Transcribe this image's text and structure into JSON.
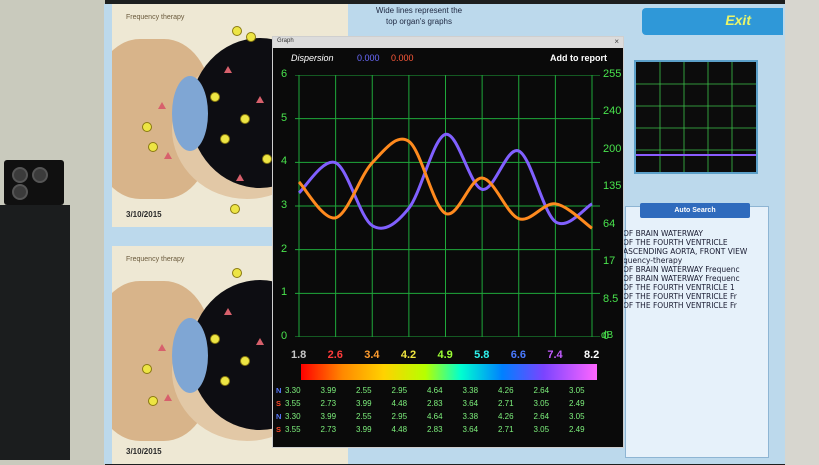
{
  "left_column": {
    "thumbs": [
      {
        "title": "Frequency therapy",
        "date": "3/10/2015"
      },
      {
        "title": "Frequency therapy",
        "date": "3/10/2015"
      }
    ]
  },
  "header": {
    "info_text_line1": "Wide lines represent the",
    "info_text_line2": "top organ's graphs",
    "exit_label": "Exit"
  },
  "graph_window": {
    "title": "Graph",
    "close_glyph": "×",
    "dispersion_label": "Dispersion",
    "dispersion_n": "0.000",
    "dispersion_s": "0.000",
    "add_report_label": "Add to report",
    "y_left_ticks": [
      "6",
      "5",
      "4",
      "3",
      "2",
      "1",
      "0"
    ],
    "y_right_ticks": [
      "255",
      "240",
      "200",
      "135",
      "64",
      "17",
      "8.5",
      "0"
    ],
    "unit_label": "dB",
    "freq_labels": [
      {
        "text": "1.8",
        "color": "#c8c8c8"
      },
      {
        "text": "2.6",
        "color": "#ff3b3b"
      },
      {
        "text": "3.4",
        "color": "#ff9d2f"
      },
      {
        "text": "4.2",
        "color": "#f0e640"
      },
      {
        "text": "4.9",
        "color": "#9cff35"
      },
      {
        "text": "5.8",
        "color": "#2ff2ee"
      },
      {
        "text": "6.6",
        "color": "#4a7aff"
      },
      {
        "text": "7.4",
        "color": "#c25cff"
      },
      {
        "text": "8.2",
        "color": "#ffffff"
      }
    ],
    "table_rows": [
      {
        "label": "N",
        "label_color": "#5a7aff",
        "values": [
          "3.30",
          "3.99",
          "2.55",
          "2.95",
          "4.64",
          "3.38",
          "4.26",
          "2.64",
          "3.05"
        ]
      },
      {
        "label": "S",
        "label_color": "#ff4a2a",
        "values": [
          "3.55",
          "2.73",
          "3.99",
          "4.48",
          "2.83",
          "3.64",
          "2.71",
          "3.05",
          "2.49"
        ]
      },
      {
        "label": "N",
        "label_color": "#5a7aff",
        "values": [
          "3.30",
          "3.99",
          "2.55",
          "2.95",
          "4.64",
          "3.38",
          "4.26",
          "2.64",
          "3.05"
        ]
      },
      {
        "label": "S",
        "label_color": "#ff4a2a",
        "values": [
          "3.55",
          "2.73",
          "3.99",
          "4.48",
          "2.83",
          "3.64",
          "2.71",
          "3.05",
          "2.49"
        ]
      }
    ]
  },
  "chart_data": {
    "type": "line",
    "x": [
      1.8,
      2.6,
      3.4,
      4.2,
      4.9,
      5.8,
      6.6,
      7.4,
      8.2
    ],
    "ylim": [
      0,
      6
    ],
    "grid": true,
    "series": [
      {
        "name": "N",
        "color": "#8060ff",
        "values": [
          3.3,
          3.99,
          2.55,
          2.95,
          4.64,
          3.38,
          4.26,
          2.64,
          3.05
        ]
      },
      {
        "name": "S",
        "color": "#ff8a1e",
        "values": [
          3.55,
          2.73,
          3.99,
          4.48,
          2.83,
          3.64,
          2.71,
          3.05,
          2.49
        ]
      }
    ]
  },
  "right_side": {
    "auto_search_label": "Auto Search",
    "log_lines": [
      "OF BRAIN WATERWAY",
      "OF THE FOURTH VENTRICLE",
      "ASCENDING AORTA, FRONT VIEW",
      "",
      "quency-therapy",
      "OF BRAIN WATERWAY  Frequenc",
      "OF BRAIN WATERWAY  Frequenc",
      "OF THE FOURTH VENTRICLE  1",
      "OF THE FOURTH VENTRICLE  Fr",
      "OF THE FOURTH VENTRICLE  Fr"
    ]
  }
}
